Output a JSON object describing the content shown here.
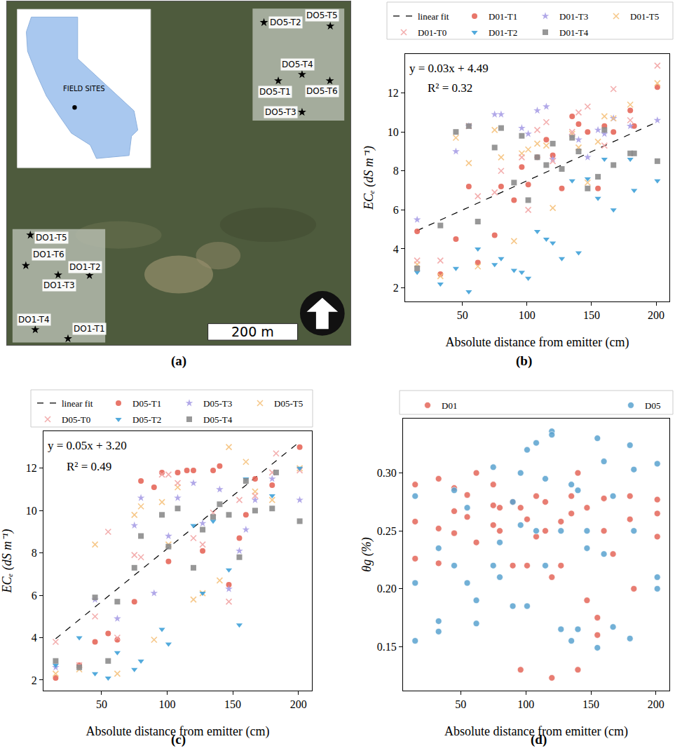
{
  "chart_data": [
    {
      "type": "map",
      "caption": "(a)",
      "xlim": [
        0,
        766
      ],
      "ylim": [
        0,
        766
      ],
      "tick_labels": false,
      "inset_label": "FIELD SITES",
      "scale_bar": {
        "length": 200,
        "label": "200 m"
      },
      "sites": [
        {
          "name": "DO5-T2",
          "x": 573,
          "y": 719
        },
        {
          "name": "DO5-T5",
          "x": 721,
          "y": 711
        },
        {
          "name": "DO5-T4",
          "x": 658,
          "y": 603
        },
        {
          "name": "DO5-T1",
          "x": 605,
          "y": 589
        },
        {
          "name": "DO5-T6",
          "x": 720,
          "y": 589
        },
        {
          "name": "DO5-T3",
          "x": 658,
          "y": 519
        },
        {
          "name": "DO1-T5",
          "x": 52,
          "y": 245
        },
        {
          "name": "DO1-T6",
          "x": 42,
          "y": 177
        },
        {
          "name": "DO1-T2",
          "x": 184,
          "y": 155
        },
        {
          "name": "DO1-T3",
          "x": 114,
          "y": 156
        },
        {
          "name": "DO1-T4",
          "x": 63,
          "y": 34
        },
        {
          "name": "DO1-T1",
          "x": 136,
          "y": 14
        }
      ]
    },
    {
      "type": "scatter",
      "caption": "(b)",
      "x_label": "Absolute distance from emitter (cm)",
      "y_label": "ECₑ (dS m⁻¹)",
      "xlim": [
        5.7,
        210.3
      ],
      "ylim": [
        1.3,
        14.0
      ],
      "xticks": [
        50,
        100,
        150,
        200
      ],
      "yticks": [
        2,
        4,
        6,
        8,
        10,
        12
      ],
      "grid": false,
      "legend": "top",
      "fit": {
        "name": "linear fit",
        "slope": 0.03,
        "intercept": 4.49,
        "x": [
          15,
          201
        ],
        "color": "#000000",
        "line_style": "dashed",
        "equation": "y = 0.03x + 4.49",
        "r2": "R² = 0.32"
      },
      "series": [
        {
          "name": "D01-T1",
          "color": "#e5675a",
          "marker": "circle",
          "x": [
            15,
            33,
            45,
            55,
            62,
            75,
            80,
            90,
            96,
            101,
            108,
            115,
            120,
            127,
            135,
            140,
            147,
            155,
            160,
            167,
            180,
            183,
            201
          ],
          "values": [
            4.9,
            2.7,
            4.5,
            7.2,
            3.3,
            4.7,
            7.2,
            6.5,
            8.2,
            7.3,
            8.7,
            9.6,
            8.8,
            7.1,
            10.8,
            10.4,
            10.0,
            7.1,
            10.3,
            10.0,
            11.1,
            10.3,
            12.3
          ]
        },
        {
          "name": "D01-T3",
          "color": "#a89ee6",
          "marker": "star",
          "x": [
            15,
            45,
            55,
            75,
            80,
            96,
            101,
            108,
            115,
            120,
            135,
            140,
            147,
            155,
            160,
            167,
            180,
            201
          ],
          "values": [
            5.5,
            9.0,
            10.3,
            10.9,
            10.9,
            10.2,
            9.9,
            11.1,
            11.3,
            8.6,
            9.8,
            9.6,
            8.7,
            10.1,
            9.9,
            10.7,
            10.3,
            10.6
          ]
        },
        {
          "name": "D01-T5",
          "color": "#f5c27d",
          "marker": "x",
          "x": [
            15,
            33,
            45,
            55,
            62,
            75,
            80,
            90,
            96,
            101,
            108,
            115,
            120,
            135,
            140,
            147,
            155,
            160,
            167,
            180,
            201
          ],
          "values": [
            3.2,
            2.6,
            9.7,
            8.4,
            3.1,
            10.1,
            8.7,
            4.4,
            8.9,
            9.1,
            9.4,
            9.3,
            6.1,
            9.9,
            9.2,
            7.4,
            9.5,
            10.8,
            10.7,
            11.4,
            12.5
          ]
        },
        {
          "name": "D01-T0",
          "color": "#f2a5a5",
          "marker": "x",
          "x": [
            15,
            33,
            55,
            62,
            75,
            80,
            96,
            101,
            108,
            115,
            120,
            135,
            140,
            147,
            160,
            167,
            180,
            201
          ],
          "values": [
            3.4,
            3.4,
            10.3,
            6.7,
            6.9,
            8.0,
            8.7,
            6.0,
            10.1,
            10.5,
            8.5,
            10.0,
            11.0,
            11.3,
            9.3,
            12.2,
            10.6,
            13.4
          ]
        },
        {
          "name": "D01-T2",
          "color": "#3fa1d8",
          "marker": "triangle-down",
          "x": [
            15,
            33,
            45,
            55,
            62,
            75,
            80,
            90,
            96,
            101,
            108,
            115,
            120,
            127,
            135,
            140,
            147,
            155,
            160,
            167,
            180,
            183,
            201
          ],
          "values": [
            2.8,
            2.2,
            3.0,
            1.8,
            4.0,
            3.2,
            3.5,
            2.9,
            2.8,
            2.5,
            4.9,
            4.5,
            4.3,
            3.5,
            7.5,
            3.8,
            7.6,
            6.6,
            8.6,
            6.0,
            8.6,
            7.0,
            7.5
          ]
        },
        {
          "name": "D01-T4",
          "color": "#8c8c8c",
          "marker": "square",
          "x": [
            15,
            33,
            45,
            55,
            62,
            75,
            80,
            90,
            96,
            101,
            108,
            115,
            120,
            127,
            135,
            140,
            147,
            155,
            160,
            167,
            180,
            183,
            201
          ],
          "values": [
            3.0,
            5.2,
            10.0,
            10.3,
            5.4,
            9.2,
            10.2,
            7.4,
            9.8,
            6.5,
            8.7,
            8.3,
            9.4,
            8.1,
            9.7,
            9.0,
            7.1,
            7.7,
            10.1,
            8.3,
            8.9,
            8.9,
            8.5
          ]
        }
      ]
    },
    {
      "type": "scatter",
      "caption": "(c)",
      "x_label": "Absolute distance from emitter (cm)",
      "y_label": "ECₑ (dS m⁻¹)",
      "xlim": [
        5.7,
        210.3
      ],
      "ylim": [
        1.5,
        13.75
      ],
      "xticks": [
        50,
        100,
        150,
        200
      ],
      "yticks": [
        2,
        4,
        6,
        8,
        10,
        12
      ],
      "grid": false,
      "legend": "top",
      "fit": {
        "name": "linear fit",
        "slope": 0.05,
        "intercept": 3.2,
        "x": [
          15,
          201
        ],
        "color": "#000000",
        "line_style": "dashed",
        "equation": "y = 0.05x + 3.20",
        "r2": "R² = 0.49"
      },
      "series": [
        {
          "name": "D05-T1",
          "color": "#e5675a",
          "marker": "circle",
          "x": [
            15,
            33,
            45,
            55,
            62,
            75,
            80,
            90,
            96,
            101,
            108,
            115,
            120,
            127,
            135,
            140,
            147,
            155,
            160,
            167,
            180,
            201
          ],
          "values": [
            2.1,
            2.7,
            3.8,
            4.2,
            3.9,
            5.7,
            11.4,
            11.1,
            11.8,
            7.6,
            11.8,
            11.9,
            11.9,
            8.1,
            11.9,
            12.1,
            6.5,
            8.7,
            9.8,
            11.5,
            11.2,
            13.0
          ]
        },
        {
          "name": "D05-T3",
          "color": "#a89ee6",
          "marker": "star",
          "x": [
            15,
            45,
            62,
            75,
            80,
            90,
            101,
            108,
            120,
            127,
            140,
            147,
            155,
            160,
            167,
            180,
            201
          ],
          "values": [
            2.6,
            5.8,
            4.9,
            9.3,
            10.6,
            6.1,
            8.8,
            10.6,
            11.3,
            9.4,
            11.0,
            6.3,
            8.1,
            9.1,
            10.5,
            11.5,
            10.5
          ]
        },
        {
          "name": "D05-T5",
          "color": "#f5c27d",
          "marker": "x",
          "x": [
            15,
            33,
            45,
            62,
            75,
            80,
            90,
            96,
            101,
            108,
            120,
            127,
            140,
            147,
            160,
            167,
            180,
            201
          ],
          "values": [
            2.3,
            2.5,
            8.4,
            2.3,
            9.8,
            10.2,
            3.9,
            10.4,
            8.4,
            11.1,
            5.8,
            6.1,
            6.7,
            13.0,
            12.3,
            10.9,
            10.5,
            12.0
          ]
        },
        {
          "name": "D05-T0",
          "color": "#f2a5a5",
          "marker": "x",
          "x": [
            15,
            33,
            45,
            55,
            62,
            75,
            80,
            96,
            101,
            108,
            120,
            127,
            135,
            147,
            155,
            167,
            180,
            183,
            201
          ],
          "values": [
            3.8,
            2.7,
            5.0,
            9.0,
            4.0,
            7.9,
            7.8,
            11.7,
            11.7,
            11.3,
            8.7,
            8.4,
            9.9,
            5.7,
            10.5,
            10.7,
            11.8,
            12.7,
            11.9
          ]
        },
        {
          "name": "D05-T2",
          "color": "#3fa1d8",
          "marker": "triangle-down",
          "x": [
            15,
            33,
            45,
            55,
            62,
            75,
            80,
            96,
            101,
            120,
            127,
            135,
            147,
            155,
            160,
            180,
            201
          ],
          "values": [
            2.7,
            4.0,
            2.3,
            2.1,
            3.3,
            2.5,
            2.9,
            4.4,
            3.7,
            9.3,
            6.1,
            9.5,
            7.2,
            4.6,
            11.5,
            10.7,
            12.0
          ]
        },
        {
          "name": "D05-T4",
          "color": "#8c8c8c",
          "marker": "square",
          "x": [
            15,
            33,
            45,
            55,
            62,
            75,
            80,
            96,
            101,
            108,
            120,
            127,
            135,
            140,
            147,
            155,
            160,
            167,
            180,
            183,
            201
          ],
          "values": [
            2.9,
            2.6,
            5.9,
            2.9,
            5.7,
            7.3,
            8.8,
            9.8,
            8.3,
            10.1,
            7.3,
            9.1,
            9.7,
            10.3,
            9.8,
            7.8,
            11.4,
            10.0,
            10.1,
            11.8,
            9.5
          ]
        }
      ]
    },
    {
      "type": "scatter",
      "caption": "(d)",
      "x_label": "Absolute distance from emitter (cm)",
      "y_label": "θg (%)",
      "xlim": [
        5.7,
        210.3
      ],
      "ylim": [
        0.112,
        0.347
      ],
      "xticks": [
        50,
        100,
        150,
        200
      ],
      "yticks": [
        0.15,
        {
          "value": 0.2,
          "label": "0.20"
        },
        0.25,
        {
          "value": 0.3,
          "label": "0.30"
        }
      ],
      "grid": false,
      "legend": "top",
      "series": [
        {
          "name": "D01",
          "color": "#e5675a",
          "marker": "circle",
          "x": [
            15,
            15,
            15,
            33,
            33,
            33,
            45,
            45,
            45,
            55,
            55,
            62,
            62,
            75,
            75,
            75,
            80,
            80,
            90,
            90,
            96,
            96,
            101,
            101,
            108,
            108,
            115,
            115,
            120,
            120,
            127,
            127,
            135,
            135,
            140,
            140,
            147,
            147,
            155,
            155,
            160,
            160,
            167,
            180,
            180,
            183,
            201,
            201,
            201
          ],
          "values": [
            0.29,
            0.258,
            0.226,
            0.295,
            0.252,
            0.222,
            0.287,
            0.267,
            0.248,
            0.281,
            0.262,
            0.3,
            0.24,
            0.29,
            0.272,
            0.255,
            0.27,
            0.25,
            0.275,
            0.22,
            0.27,
            0.13,
            0.26,
            0.22,
            0.28,
            0.245,
            0.275,
            0.25,
            0.21,
            0.123,
            0.258,
            0.22,
            0.28,
            0.265,
            0.3,
            0.13,
            0.27,
            0.19,
            0.175,
            0.16,
            0.278,
            0.25,
            0.23,
            0.28,
            0.26,
            0.2,
            0.277,
            0.245,
            0.265
          ]
        },
        {
          "name": "D05",
          "color": "#5aa3d0",
          "marker": "circle",
          "x": [
            15,
            15,
            15,
            33,
            33,
            33,
            45,
            45,
            55,
            55,
            62,
            62,
            75,
            75,
            80,
            80,
            90,
            90,
            96,
            96,
            101,
            101,
            108,
            108,
            115,
            115,
            120,
            120,
            127,
            127,
            135,
            135,
            140,
            140,
            147,
            147,
            155,
            155,
            160,
            160,
            167,
            167,
            180,
            180,
            183,
            183,
            201,
            201,
            201
          ],
          "values": [
            0.28,
            0.205,
            0.155,
            0.235,
            0.172,
            0.163,
            0.285,
            0.22,
            0.27,
            0.205,
            0.19,
            0.17,
            0.305,
            0.22,
            0.21,
            0.24,
            0.275,
            0.185,
            0.3,
            0.255,
            0.32,
            0.185,
            0.326,
            0.25,
            0.295,
            0.22,
            0.336,
            0.333,
            0.165,
            0.25,
            0.29,
            0.155,
            0.285,
            0.165,
            0.25,
            0.235,
            0.33,
            0.149,
            0.31,
            0.23,
            0.167,
            0.28,
            0.324,
            0.157,
            0.303,
            0.25,
            0.308,
            0.2,
            0.21
          ]
        }
      ]
    }
  ]
}
